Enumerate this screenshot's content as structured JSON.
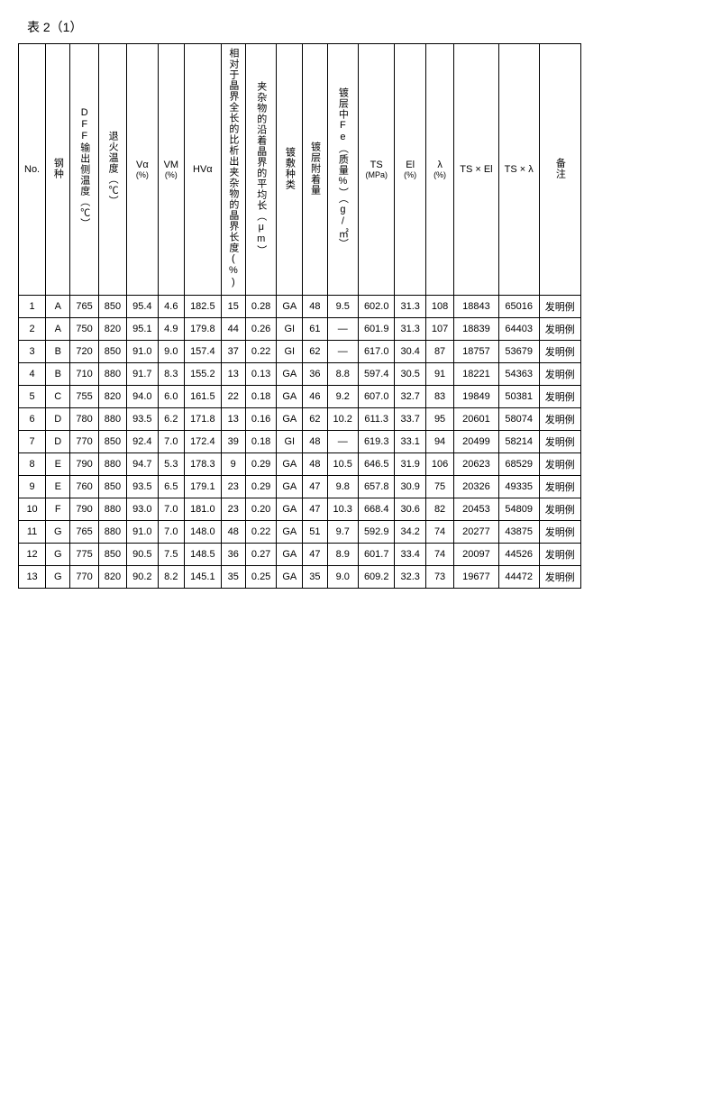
{
  "caption": "表 2（1）",
  "columns": [
    {
      "key": "no",
      "label": "No.",
      "vertical": false
    },
    {
      "key": "steel",
      "label": "钢种",
      "vertical": true
    },
    {
      "key": "dff",
      "label": "DFF输出侧温度（℃）",
      "vertical": true
    },
    {
      "key": "anneal",
      "label": "退火温度（℃）",
      "vertical": true
    },
    {
      "key": "va",
      "label": "Vα\n(%)",
      "vertical": false
    },
    {
      "key": "vm",
      "label": "VM\n(%)",
      "vertical": false
    },
    {
      "key": "hva",
      "label": "HVα",
      "vertical": false
    },
    {
      "key": "ratio",
      "label": "相对于晶界全长的比析出夹杂物的晶界长度(%)",
      "vertical": true
    },
    {
      "key": "avglen",
      "label": "夹杂物的沿着晶界的平均长（μm）",
      "vertical": true
    },
    {
      "key": "plating",
      "label": "镀敷种类",
      "vertical": true
    },
    {
      "key": "adhesion",
      "label": "镀层附着量",
      "vertical": true
    },
    {
      "key": "fe",
      "label": "镀层中Fe（质量%）（g/㎡）",
      "vertical": true
    },
    {
      "key": "ts",
      "label": "TS\n(MPa)",
      "vertical": false
    },
    {
      "key": "el",
      "label": "El\n(%)",
      "vertical": false
    },
    {
      "key": "lambda",
      "label": "λ\n(%)",
      "vertical": false
    },
    {
      "key": "tsel",
      "label": "TS × El",
      "vertical": false
    },
    {
      "key": "tslambda",
      "label": "TS × λ",
      "vertical": false
    },
    {
      "key": "remark",
      "label": "备注",
      "vertical": true
    }
  ],
  "rows": [
    {
      "no": "1",
      "steel": "A",
      "dff": "765",
      "anneal": "850",
      "va": "95.4",
      "vm": "4.6",
      "hva": "182.5",
      "ratio": "15",
      "avglen": "0.28",
      "plating": "GA",
      "adhesion": "48",
      "fe": "9.5",
      "ts": "602.0",
      "el": "31.3",
      "lambda": "108",
      "tsel": "18843",
      "tslambda": "65016",
      "remark": "发明例"
    },
    {
      "no": "2",
      "steel": "A",
      "dff": "750",
      "anneal": "820",
      "va": "95.1",
      "vm": "4.9",
      "hva": "179.8",
      "ratio": "44",
      "avglen": "0.26",
      "plating": "GI",
      "adhesion": "61",
      "fe": "—",
      "ts": "601.9",
      "el": "31.3",
      "lambda": "107",
      "tsel": "18839",
      "tslambda": "64403",
      "remark": "发明例"
    },
    {
      "no": "3",
      "steel": "B",
      "dff": "720",
      "anneal": "850",
      "va": "91.0",
      "vm": "9.0",
      "hva": "157.4",
      "ratio": "37",
      "avglen": "0.22",
      "plating": "GI",
      "adhesion": "62",
      "fe": "—",
      "ts": "617.0",
      "el": "30.4",
      "lambda": "87",
      "tsel": "18757",
      "tslambda": "53679",
      "remark": "发明例"
    },
    {
      "no": "4",
      "steel": "B",
      "dff": "710",
      "anneal": "880",
      "va": "91.7",
      "vm": "8.3",
      "hva": "155.2",
      "ratio": "13",
      "avglen": "0.13",
      "plating": "GA",
      "adhesion": "36",
      "fe": "8.8",
      "ts": "597.4",
      "el": "30.5",
      "lambda": "91",
      "tsel": "18221",
      "tslambda": "54363",
      "remark": "发明例"
    },
    {
      "no": "5",
      "steel": "C",
      "dff": "755",
      "anneal": "820",
      "va": "94.0",
      "vm": "6.0",
      "hva": "161.5",
      "ratio": "22",
      "avglen": "0.18",
      "plating": "GA",
      "adhesion": "46",
      "fe": "9.2",
      "ts": "607.0",
      "el": "32.7",
      "lambda": "83",
      "tsel": "19849",
      "tslambda": "50381",
      "remark": "发明例"
    },
    {
      "no": "6",
      "steel": "D",
      "dff": "780",
      "anneal": "880",
      "va": "93.5",
      "vm": "6.2",
      "hva": "171.8",
      "ratio": "13",
      "avglen": "0.16",
      "plating": "GA",
      "adhesion": "62",
      "fe": "10.2",
      "ts": "611.3",
      "el": "33.7",
      "lambda": "95",
      "tsel": "20601",
      "tslambda": "58074",
      "remark": "发明例"
    },
    {
      "no": "7",
      "steel": "D",
      "dff": "770",
      "anneal": "850",
      "va": "92.4",
      "vm": "7.0",
      "hva": "172.4",
      "ratio": "39",
      "avglen": "0.18",
      "plating": "GI",
      "adhesion": "48",
      "fe": "—",
      "ts": "619.3",
      "el": "33.1",
      "lambda": "94",
      "tsel": "20499",
      "tslambda": "58214",
      "remark": "发明例"
    },
    {
      "no": "8",
      "steel": "E",
      "dff": "790",
      "anneal": "880",
      "va": "94.7",
      "vm": "5.3",
      "hva": "178.3",
      "ratio": "9",
      "avglen": "0.29",
      "plating": "GA",
      "adhesion": "48",
      "fe": "10.5",
      "ts": "646.5",
      "el": "31.9",
      "lambda": "106",
      "tsel": "20623",
      "tslambda": "68529",
      "remark": "发明例"
    },
    {
      "no": "9",
      "steel": "E",
      "dff": "760",
      "anneal": "850",
      "va": "93.5",
      "vm": "6.5",
      "hva": "179.1",
      "ratio": "23",
      "avglen": "0.29",
      "plating": "GA",
      "adhesion": "47",
      "fe": "9.8",
      "ts": "657.8",
      "el": "30.9",
      "lambda": "75",
      "tsel": "20326",
      "tslambda": "49335",
      "remark": "发明例"
    },
    {
      "no": "10",
      "steel": "F",
      "dff": "790",
      "anneal": "880",
      "va": "93.0",
      "vm": "7.0",
      "hva": "181.0",
      "ratio": "23",
      "avglen": "0.20",
      "plating": "GA",
      "adhesion": "47",
      "fe": "10.3",
      "ts": "668.4",
      "el": "30.6",
      "lambda": "82",
      "tsel": "20453",
      "tslambda": "54809",
      "remark": "发明例"
    },
    {
      "no": "11",
      "steel": "G",
      "dff": "765",
      "anneal": "880",
      "va": "91.0",
      "vm": "7.0",
      "hva": "148.0",
      "ratio": "48",
      "avglen": "0.22",
      "plating": "GA",
      "adhesion": "51",
      "fe": "9.7",
      "ts": "592.9",
      "el": "34.2",
      "lambda": "74",
      "tsel": "20277",
      "tslambda": "43875",
      "remark": "发明例"
    },
    {
      "no": "12",
      "steel": "G",
      "dff": "775",
      "anneal": "850",
      "va": "90.5",
      "vm": "7.5",
      "hva": "148.5",
      "ratio": "36",
      "avglen": "0.27",
      "plating": "GA",
      "adhesion": "47",
      "fe": "8.9",
      "ts": "601.7",
      "el": "33.4",
      "lambda": "74",
      "tsel": "20097",
      "tslambda": "44526",
      "remark": "发明例"
    },
    {
      "no": "13",
      "steel": "G",
      "dff": "770",
      "anneal": "820",
      "va": "90.2",
      "vm": "8.2",
      "hva": "145.1",
      "ratio": "35",
      "avglen": "0.25",
      "plating": "GA",
      "adhesion": "35",
      "fe": "9.0",
      "ts": "609.2",
      "el": "32.3",
      "lambda": "73",
      "tsel": "19677",
      "tslambda": "44472",
      "remark": "发明例"
    }
  ]
}
